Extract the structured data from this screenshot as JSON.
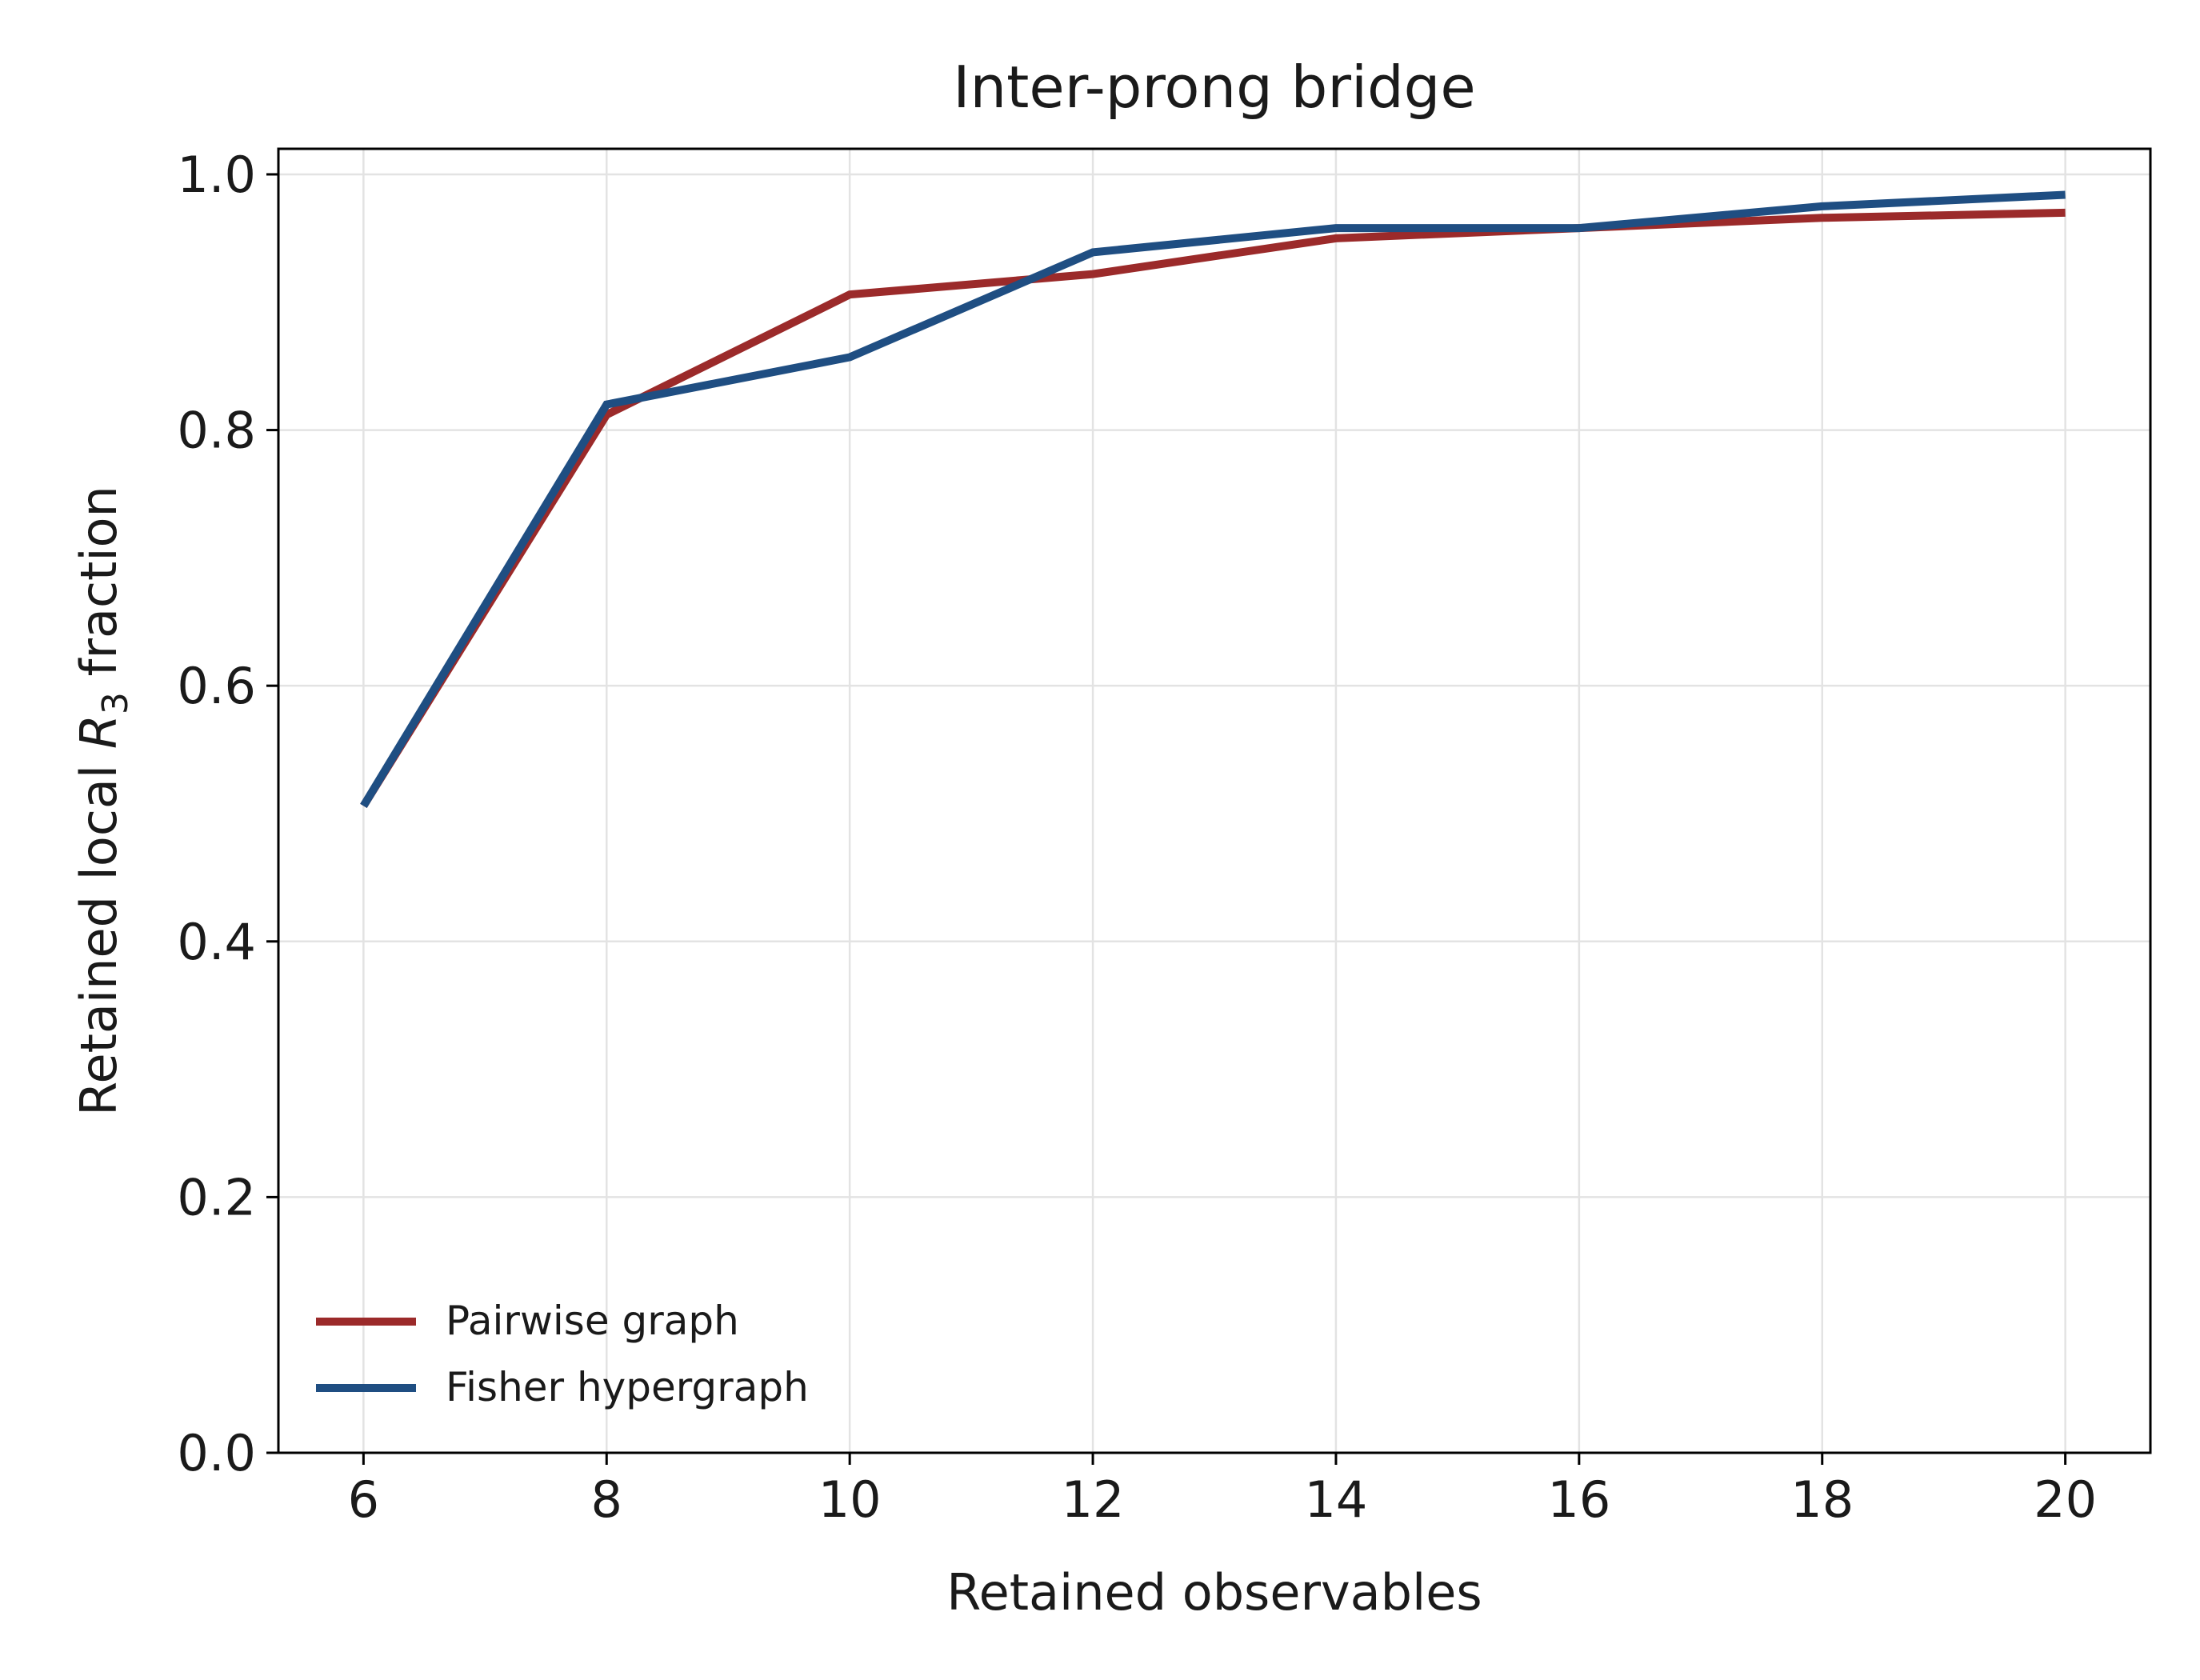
{
  "chart_data": {
    "type": "line",
    "title": "Inter-prong bridge",
    "xlabel": "Retained observables",
    "ylabel_main": "Retained local ",
    "ylabel_symbol": "R",
    "ylabel_subscript": "3",
    "ylabel_tail": " fraction",
    "x": [
      6,
      8,
      10,
      12,
      14,
      16,
      18,
      20
    ],
    "xlim": [
      5.3,
      20.7
    ],
    "ylim": [
      0.0,
      1.02
    ],
    "xticks": [
      6,
      8,
      10,
      12,
      14,
      16,
      18,
      20
    ],
    "yticks": [
      0.0,
      0.2,
      0.4,
      0.6,
      0.8,
      1.0
    ],
    "ytick_labels": [
      "0.0",
      "0.2",
      "0.4",
      "0.6",
      "0.8",
      "1.0"
    ],
    "grid": true,
    "legend_position": "lower-left",
    "series": [
      {
        "name": "Pairwise graph",
        "color": "#9b2a2a",
        "values": [
          0.506,
          0.812,
          0.906,
          0.922,
          0.95,
          0.958,
          0.966,
          0.97
        ]
      },
      {
        "name": "Fisher hypergraph",
        "color": "#1f4e82",
        "values": [
          0.506,
          0.82,
          0.857,
          0.939,
          0.958,
          0.958,
          0.975,
          0.984
        ]
      }
    ]
  }
}
